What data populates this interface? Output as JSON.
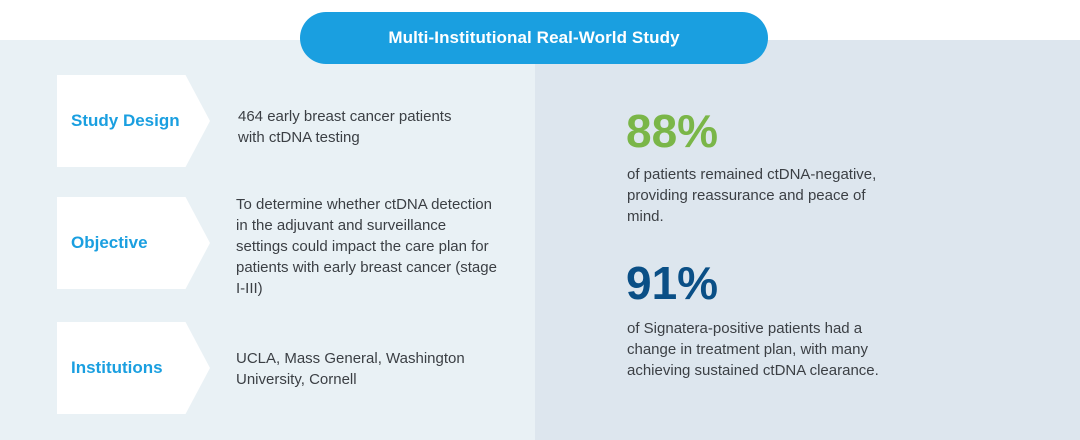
{
  "header": {
    "title": "Multi-Institutional Real-World Study"
  },
  "rows": [
    {
      "label": "Study Design",
      "description": "464 early breast cancer patients with ctDNA testing"
    },
    {
      "label": "Objective",
      "description": "To determine whether ctDNA detection in the adjuvant and surveillance settings could impact the care plan for patients with early breast cancer (stage I-III)"
    },
    {
      "label": "Institutions",
      "description": "UCLA, Mass General, Washington University, Cornell"
    }
  ],
  "stats": [
    {
      "value": "88%",
      "color": "#7ab648",
      "description": "of patients remained ctDNA-negative, providing reassurance and peace of mind."
    },
    {
      "value": "91%",
      "color": "#0a4f86",
      "description": "of Signatera-positive patients had a change in treatment plan, with many achieving sustained ctDNA clearance."
    }
  ],
  "colors": {
    "accent": "#1a9fe0",
    "left_panel": "#e9f1f5",
    "right_panel": "#dde6ee"
  }
}
